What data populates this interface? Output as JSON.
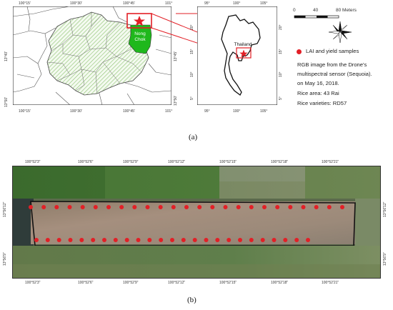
{
  "panel_a": {
    "bangkok_map": {
      "x_ticks": [
        "100°15'",
        "100°30'",
        "100°45'",
        "101°"
      ],
      "y_ticks": [
        "13°40'",
        "13°50'"
      ],
      "right_y_ticks": [
        "13°45'",
        "13°50'"
      ],
      "district_label_1": "Nong",
      "district_label_2": "Chok"
    },
    "thailand_map": {
      "x_ticks": [
        "95°",
        "100°",
        "105°"
      ],
      "y_ticks": [
        "20°",
        "15°",
        "10°",
        "5°"
      ],
      "right_y_ticks": [
        "20°",
        "15°",
        "10°",
        "5°"
      ],
      "country_label": "Thailand"
    },
    "scale_bar": {
      "ticks": [
        "0",
        "40",
        "80 Meters"
      ]
    },
    "legend": {
      "samples_label": "LAI and yield samples",
      "marker_color": "#e21f26",
      "info_lines": [
        "RGB image from the Drone's",
        "multispectral sensor (Sequoia).",
        "on May 16, 2018.",
        "Rice area: 43 Rai",
        "Rice varieties: RD57"
      ]
    },
    "caption": "(a)"
  },
  "panel_b": {
    "x_ticks": [
      "100°52'3\"",
      "100°52'6\"",
      "100°52'9\"",
      "100°52'12\"",
      "100°52'15\"",
      "100°52'18\"",
      "100°52'21\""
    ],
    "y_ticks": [
      "13°56'12\"",
      "13°56'9\""
    ],
    "sample_rows": [
      {
        "count": 25
      },
      {
        "count": 25
      }
    ],
    "caption": "(b)"
  }
}
